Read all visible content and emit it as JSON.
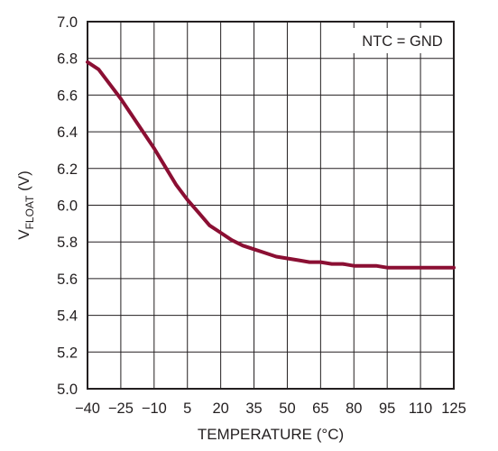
{
  "chart_data": {
    "type": "line",
    "title": "",
    "xlabel": "TEMPERATURE (°C)",
    "ylabel_main": "V",
    "ylabel_sub": "FLOAT",
    "ylabel_unit": " (V)",
    "xlim": [
      -40,
      125
    ],
    "ylim": [
      5.0,
      7.0
    ],
    "x_ticks": [
      -40,
      -25,
      -10,
      5,
      20,
      35,
      50,
      65,
      80,
      95,
      110,
      125
    ],
    "x_tick_labels": [
      "−40",
      "−25",
      "−10",
      "5",
      "20",
      "35",
      "50",
      "65",
      "80",
      "95",
      "110",
      "125"
    ],
    "y_ticks": [
      5.0,
      5.2,
      5.4,
      5.6,
      5.8,
      6.0,
      6.2,
      6.4,
      6.6,
      6.8,
      7.0
    ],
    "y_tick_labels": [
      "5.0",
      "5.2",
      "5.4",
      "5.6",
      "5.8",
      "6.0",
      "6.2",
      "6.4",
      "6.6",
      "6.8",
      "7.0"
    ],
    "grid": true,
    "annotation": "NTC = GND",
    "line_color": "#8b0f33",
    "series": [
      {
        "x": [
          -40,
          -35,
          -30,
          -25,
          -20,
          -15,
          -10,
          -5,
          0,
          5,
          10,
          15,
          20,
          25,
          30,
          35,
          40,
          45,
          50,
          55,
          60,
          65,
          70,
          75,
          80,
          85,
          90,
          95,
          100,
          105,
          110,
          115,
          120,
          125
        ],
        "y": [
          6.78,
          6.74,
          6.66,
          6.58,
          6.49,
          6.4,
          6.31,
          6.21,
          6.11,
          6.03,
          5.96,
          5.89,
          5.85,
          5.81,
          5.78,
          5.76,
          5.74,
          5.72,
          5.71,
          5.7,
          5.69,
          5.69,
          5.68,
          5.68,
          5.67,
          5.67,
          5.67,
          5.66,
          5.66,
          5.66,
          5.66,
          5.66,
          5.66,
          5.66
        ]
      }
    ]
  }
}
